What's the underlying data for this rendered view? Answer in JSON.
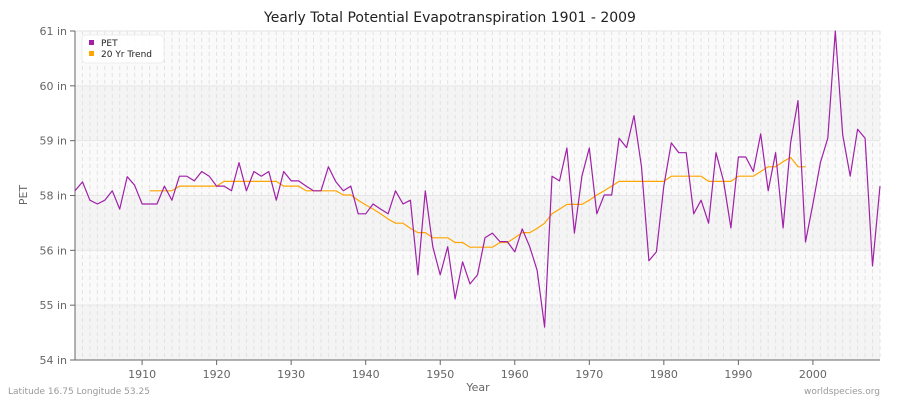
{
  "chart_data": {
    "type": "line",
    "title": "Yearly Total Potential Evapotranspiration 1901 - 2009",
    "xlabel": "Year",
    "ylabel": "PET",
    "xlim": [
      1901,
      2009
    ],
    "ylim": [
      54,
      61
    ],
    "x_ticks": [
      1910,
      1920,
      1930,
      1940,
      1950,
      1960,
      1970,
      1980,
      1990,
      2000
    ],
    "y_tick_labels": [
      "54 in",
      "55 in",
      "56 in",
      "58 in",
      "59 in",
      "60 in",
      "61 in"
    ],
    "grid": true,
    "legend_placement": "top-left",
    "colors": {
      "pet": "#a020a8",
      "trend": "#ffa500"
    },
    "series": [
      {
        "name": "PET",
        "x_start": 1901,
        "values": [
          57.6,
          57.79,
          57.4,
          57.32,
          57.4,
          57.6,
          57.21,
          57.9,
          57.72,
          57.32,
          57.32,
          57.32,
          57.7,
          57.4,
          57.91,
          57.91,
          57.81,
          58.01,
          57.91,
          57.7,
          57.7,
          57.6,
          58.2,
          57.6,
          58.01,
          57.91,
          58.01,
          57.4,
          58.01,
          57.81,
          57.81,
          57.7,
          57.6,
          57.6,
          58.11,
          57.79,
          57.6,
          57.7,
          57.11,
          57.11,
          57.32,
          57.21,
          57.11,
          57.6,
          57.32,
          57.4,
          55.81,
          57.6,
          56.41,
          55.81,
          56.41,
          55.3,
          56.09,
          55.62,
          55.81,
          56.6,
          56.7,
          56.52,
          56.52,
          56.3,
          56.79,
          56.41,
          55.91,
          54.7,
          57.91,
          57.81,
          58.51,
          56.7,
          57.91,
          58.51,
          57.11,
          57.51,
          57.51,
          58.72,
          58.52,
          59.2,
          58.11,
          56.11,
          56.3,
          57.7,
          58.62,
          58.41,
          58.41,
          57.11,
          57.4,
          56.91,
          58.41,
          57.81,
          56.81,
          58.32,
          58.32,
          58.01,
          58.81,
          57.6,
          58.41,
          56.81,
          58.62,
          59.52,
          56.51,
          57.32,
          58.2,
          58.72,
          61.0,
          58.79,
          57.91,
          58.91,
          58.72,
          56.0,
          57.7
        ]
      },
      {
        "name": "20 Yr Trend",
        "x_start": 1911,
        "values": [
          57.6,
          57.6,
          57.6,
          57.6,
          57.7,
          57.7,
          57.7,
          57.7,
          57.7,
          57.7,
          57.8,
          57.8,
          57.8,
          57.8,
          57.8,
          57.8,
          57.8,
          57.8,
          57.7,
          57.7,
          57.7,
          57.6,
          57.6,
          57.6,
          57.6,
          57.6,
          57.51,
          57.51,
          57.4,
          57.3,
          57.21,
          57.11,
          57.0,
          56.91,
          56.91,
          56.8,
          56.71,
          56.71,
          56.6,
          56.6,
          56.6,
          56.5,
          56.5,
          56.4,
          56.4,
          56.4,
          56.4,
          56.5,
          56.5,
          56.6,
          56.71,
          56.71,
          56.8,
          56.91,
          57.11,
          57.21,
          57.31,
          57.31,
          57.31,
          57.4,
          57.51,
          57.6,
          57.7,
          57.8,
          57.8,
          57.8,
          57.8,
          57.8,
          57.8,
          57.8,
          57.91,
          57.91,
          57.91,
          57.91,
          57.91,
          57.8,
          57.8,
          57.8,
          57.8,
          57.91,
          57.91,
          57.91,
          58.01,
          58.11,
          58.11,
          58.22,
          58.31,
          58.11,
          58.11
        ]
      }
    ]
  },
  "footer": {
    "location": "Latitude 16.75 Longitude 53.25",
    "source": "worldspecies.org"
  }
}
